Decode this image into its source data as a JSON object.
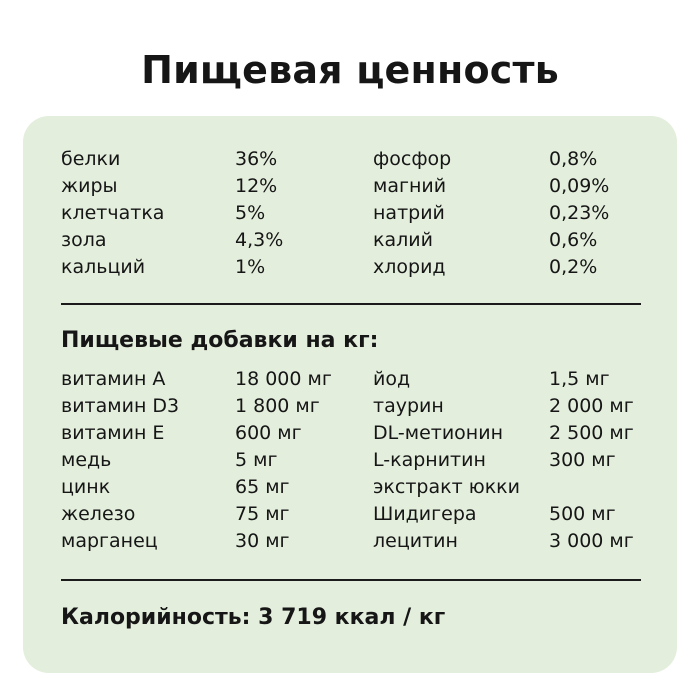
{
  "title": "Пищевая ценность",
  "nutrients": [
    {
      "name": "белки",
      "value": "36%",
      "name2": "фосфор",
      "value2": "0,8%"
    },
    {
      "name": "жиры",
      "value": "12%",
      "name2": "магний",
      "value2": "0,09%"
    },
    {
      "name": "клетчатка",
      "value": "5%",
      "name2": "натрий",
      "value2": "0,23%"
    },
    {
      "name": "зола",
      "value": "4,3%",
      "name2": "калий",
      "value2": "0,6%"
    },
    {
      "name": "кальций",
      "value": "1%",
      "name2": "хлорид",
      "value2": "0,2%"
    }
  ],
  "additives_heading": "Пищевые добавки на кг:",
  "additives": [
    {
      "name": "витамин A",
      "value": "18 000 мг",
      "name2": "йод",
      "value2": "1,5 мг"
    },
    {
      "name": "витамин D3",
      "value": "1 800 мг",
      "name2": "таурин",
      "value2": "2 000 мг"
    },
    {
      "name": "витамин E",
      "value": "600 мг",
      "name2": "DL-метионин",
      "value2": "2 500 мг"
    },
    {
      "name": "медь",
      "value": "5 мг",
      "name2": "L-карнитин",
      "value2": "300 мг"
    },
    {
      "name": "цинк",
      "value": "65 мг",
      "name2": "экстракт юкки",
      "value2": ""
    },
    {
      "name": "железо",
      "value": "75 мг",
      "name2": "Шидигера",
      "value2": "500 мг"
    },
    {
      "name": "марганец",
      "value": "30 мг",
      "name2": "лецитин",
      "value2": "3 000 мг"
    }
  ],
  "calories": "Калорийность: 3 719 ккал / кг"
}
